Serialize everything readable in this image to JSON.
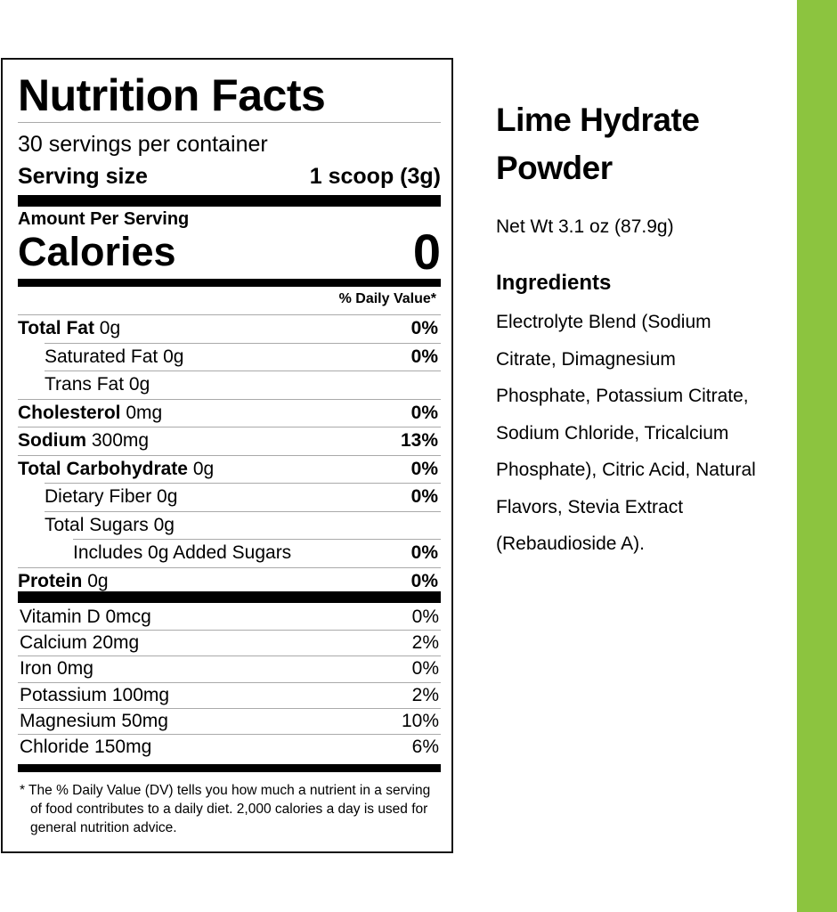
{
  "brand_color": "#8cc43f",
  "label": {
    "title": "Nutrition Facts",
    "servings_per_container": "30 servings per container",
    "serving_size_label": "Serving size",
    "serving_size_value": "1 scoop (3g)",
    "amount_per_serving": "Amount Per Serving",
    "calories_label": "Calories",
    "calories_value": "0",
    "daily_value_header": "% Daily Value*",
    "nutrients": [
      {
        "name": "Total Fat",
        "amount": "0g",
        "dv": "0%",
        "bold": true,
        "indent": 0
      },
      {
        "name": "Saturated Fat",
        "amount": "0g",
        "dv": "0%",
        "bold": false,
        "indent": 1
      },
      {
        "name": "Trans Fat",
        "amount": "0g",
        "dv": "",
        "bold": false,
        "indent": 1
      },
      {
        "name": "Cholesterol",
        "amount": "0mg",
        "dv": "0%",
        "bold": true,
        "indent": 0
      },
      {
        "name": "Sodium",
        "amount": "300mg",
        "dv": "13%",
        "bold": true,
        "indent": 0
      },
      {
        "name": "Total Carbohydrate",
        "amount": "0g",
        "dv": "0%",
        "bold": true,
        "indent": 0
      },
      {
        "name": "Dietary Fiber",
        "amount": "0g",
        "dv": "0%",
        "bold": false,
        "indent": 1
      },
      {
        "name": "Total Sugars",
        "amount": "0g",
        "dv": "",
        "bold": false,
        "indent": 1
      },
      {
        "name": "Includes 0g Added Sugars",
        "amount": "",
        "dv": "0%",
        "bold": false,
        "indent": 2
      },
      {
        "name": "Protein",
        "amount": "0g",
        "dv": "0%",
        "bold": true,
        "indent": 0
      }
    ],
    "vitamins": [
      {
        "text": "Vitamin D 0mcg",
        "dv": "0%"
      },
      {
        "text": "Calcium 20mg",
        "dv": "2%"
      },
      {
        "text": "Iron 0mg",
        "dv": "0%"
      },
      {
        "text": "Potassium 100mg",
        "dv": "2%"
      },
      {
        "text": "Magnesium 50mg",
        "dv": "10%"
      },
      {
        "text": "Chloride 150mg",
        "dv": "6%"
      }
    ],
    "footnote": "* The % Daily Value (DV) tells you how much a nutrient in a serving of food contributes to a daily diet. 2,000 calories a day is used for general nutrition advice."
  },
  "product": {
    "name": "Lime Hydrate Powder",
    "net_weight": "Net Wt 3.1 oz (87.9g)",
    "ingredients_heading": "Ingredients",
    "ingredients": "Electrolyte Blend (Sodium Citrate, Dimagnesium Phosphate, Potassium Citrate, Sodium Chloride, Tricalcium Phosphate), Citric Acid, Natural Flavors, Stevia Extract (Rebaudioside A)."
  }
}
